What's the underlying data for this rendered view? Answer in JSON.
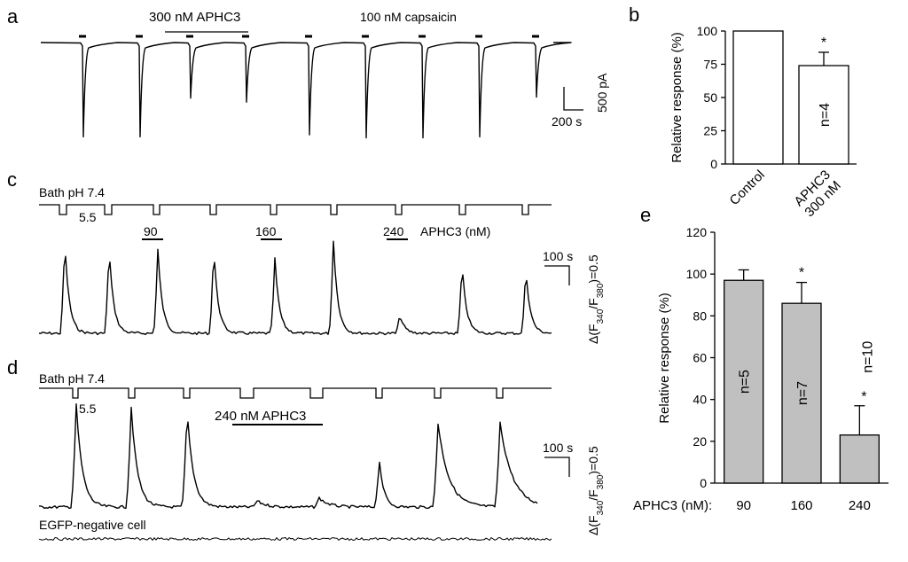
{
  "panel_letters": {
    "a": "a",
    "b": "b",
    "c": "c",
    "d": "d",
    "e": "e"
  },
  "panel_a": {
    "apch3_label": "300 nM APHC3",
    "capsaicin_label": "100 nM capsaicin",
    "scale_y": "500 pA",
    "scale_x": "200 s",
    "pulse_depths": [
      0.95,
      0.95,
      0.56,
      0.6,
      0.93,
      0.96,
      0.96,
      0.95,
      0.55
    ]
  },
  "panel_c": {
    "bath_label": "Bath pH  7.4",
    "acid_label": "5.5",
    "conc_labels": [
      "90",
      "160",
      "240"
    ],
    "conc_unit_label": "APHC3 (nM)",
    "scale_x": "100 s",
    "scale_y": "Δ(F340/F380)=0.5",
    "peak_amplitudes": [
      1.0,
      0.93,
      0.9,
      0.93,
      0.8,
      1.0,
      0.2,
      0.75,
      0.7
    ]
  },
  "panel_d": {
    "bath_label": "Bath pH  7.4",
    "acid_label": "5.5",
    "apch3_label": "240 nM APHC3",
    "scale_x": "100 s",
    "scale_y": "Δ(F340/F380)=0.5",
    "negative_label": "EGFP-negative cell",
    "peak_amplitudes": [
      1.0,
      0.98,
      0.95,
      0.06,
      0.09,
      0.45,
      0.82,
      0.82
    ]
  },
  "chart_data": [
    {
      "panel": "b",
      "type": "bar",
      "categories": [
        "Control",
        "APHC3\n300 nM"
      ],
      "values": [
        100,
        74
      ],
      "errors": [
        0,
        10
      ],
      "significance": [
        "",
        "*"
      ],
      "n_labels": [
        "",
        "n=4"
      ],
      "ylabel": "Relative response (%)",
      "ylim": [
        0,
        100
      ],
      "yticks": [
        0,
        25,
        50,
        75,
        100
      ],
      "colors": [
        "#ffffff",
        "#ffffff"
      ]
    },
    {
      "panel": "e",
      "type": "bar",
      "x_prefix": "APHC3 (nM):",
      "categories": [
        "90",
        "160",
        "240"
      ],
      "values": [
        97,
        86,
        23
      ],
      "errors": [
        5,
        10,
        14
      ],
      "significance": [
        "",
        "*",
        "*"
      ],
      "n_labels": [
        "n=5",
        "n=7",
        "n=10"
      ],
      "ylabel": "Relative response (%)",
      "ylim": [
        0,
        120
      ],
      "yticks": [
        0,
        20,
        40,
        60,
        80,
        100,
        120
      ],
      "colors": [
        "#c0c0c0",
        "#c0c0c0",
        "#c0c0c0"
      ]
    }
  ]
}
